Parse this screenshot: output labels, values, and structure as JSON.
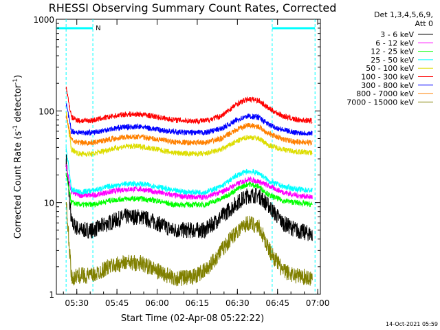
{
  "chart_data": {
    "type": "line",
    "title": "RHESSI Observing Summary Count Rates, Corrected",
    "xlabel": "Start Time (02-Apr-08 05:22:22)",
    "ylabel": "Corrected Count Rate (s",
    "ylabel_sup1": "-1",
    "ylabel_mid": " detector",
    "ylabel_sup2": "-1",
    "ylabel_end": ")",
    "footer": "14-Oct-2021 05:59",
    "y_scale": "log",
    "ylim": [
      1,
      1000
    ],
    "xlim": [
      "05:22:22",
      "07:01:00"
    ],
    "x_ticks": [
      "05:30",
      "05:45",
      "06:00",
      "06:15",
      "06:30",
      "06:45",
      "07:00"
    ],
    "y_ticks": [
      "1",
      "10",
      "100",
      "1000"
    ],
    "legend_header": [
      "Det 1,3,4,5,6,9,",
      "Att 0"
    ],
    "legend_position": "right",
    "night_marker_label": "N",
    "night_intervals": [
      [
        "05:26",
        "05:36"
      ],
      [
        "06:43",
        "06:59"
      ]
    ],
    "saa_lines": [
      "05:26",
      "05:36",
      "06:43",
      "06:59"
    ],
    "series": [
      {
        "name": "3 - 6 keV",
        "color": "#000000",
        "x": [
          "05:26",
          "05:28",
          "05:31",
          "05:36",
          "05:42",
          "05:48",
          "05:54",
          "06:00",
          "06:06",
          "06:12",
          "06:18",
          "06:24",
          "06:30",
          "06:34",
          "06:38",
          "06:42",
          "06:47",
          "06:52",
          "06:58"
        ],
        "y": [
          30,
          6,
          5,
          5,
          6,
          7,
          7,
          6,
          5,
          5,
          5,
          7,
          10,
          12,
          12,
          9,
          6,
          5,
          4.5
        ]
      },
      {
        "name": "6 - 12 keV",
        "color": "#ff00ff",
        "x": [
          "05:26",
          "05:28",
          "05:31",
          "05:36",
          "05:42",
          "05:48",
          "05:54",
          "06:00",
          "06:06",
          "06:12",
          "06:18",
          "06:24",
          "06:30",
          "06:34",
          "06:38",
          "06:42",
          "06:47",
          "06:52",
          "06:58"
        ],
        "y": [
          25,
          13,
          12,
          12,
          13,
          14,
          14,
          13,
          12,
          11.5,
          11.5,
          13,
          16,
          18,
          17,
          15,
          13,
          12,
          11.5
        ]
      },
      {
        "name": "12 - 25 keV",
        "color": "#00ff00",
        "x": [
          "05:26",
          "05:28",
          "05:31",
          "05:36",
          "05:42",
          "05:48",
          "05:54",
          "06:00",
          "06:06",
          "06:12",
          "06:18",
          "06:24",
          "06:30",
          "06:34",
          "06:38",
          "06:42",
          "06:47",
          "06:52",
          "06:58"
        ],
        "y": [
          20,
          10,
          9.5,
          9.5,
          10.5,
          11,
          11,
          10.5,
          9.5,
          9.5,
          9.5,
          11,
          14,
          16,
          15,
          12,
          10.5,
          10,
          9.5
        ]
      },
      {
        "name": "25 - 50 keV",
        "color": "#00ffff",
        "x": [
          "05:26",
          "05:28",
          "05:31",
          "05:36",
          "05:42",
          "05:48",
          "05:54",
          "06:00",
          "06:06",
          "06:12",
          "06:18",
          "06:24",
          "06:30",
          "06:34",
          "06:38",
          "06:42",
          "06:47",
          "06:52",
          "06:58"
        ],
        "y": [
          40,
          14,
          13,
          13.5,
          15,
          16,
          16,
          15,
          13.5,
          13,
          13,
          15,
          20,
          22,
          21,
          17,
          15,
          14,
          13.5
        ]
      },
      {
        "name": "50 - 100 keV",
        "color": "#dddd00",
        "x": [
          "05:26",
          "05:28",
          "05:31",
          "05:36",
          "05:42",
          "05:48",
          "05:54",
          "06:00",
          "06:06",
          "06:12",
          "06:18",
          "06:24",
          "06:30",
          "06:34",
          "06:38",
          "06:42",
          "06:47",
          "06:52",
          "06:58"
        ],
        "y": [
          100,
          38,
          34,
          34,
          38,
          41,
          41,
          38,
          35,
          34,
          34,
          38,
          47,
          52,
          50,
          42,
          38,
          36,
          35
        ]
      },
      {
        "name": "100 - 300 keV",
        "color": "#ff0000",
        "x": [
          "05:26",
          "05:28",
          "05:31",
          "05:36",
          "05:42",
          "05:48",
          "05:54",
          "06:00",
          "06:06",
          "06:12",
          "06:18",
          "06:24",
          "06:30",
          "06:34",
          "06:38",
          "06:42",
          "06:47",
          "06:52",
          "06:58"
        ],
        "y": [
          180,
          85,
          78,
          79,
          86,
          92,
          92,
          86,
          80,
          78,
          78,
          88,
          120,
          135,
          130,
          105,
          88,
          80,
          78
        ]
      },
      {
        "name": "300 - 800 keV",
        "color": "#0000ff",
        "x": [
          "05:26",
          "05:28",
          "05:31",
          "05:36",
          "05:42",
          "05:48",
          "05:54",
          "06:00",
          "06:06",
          "06:12",
          "06:18",
          "06:24",
          "06:30",
          "06:34",
          "06:38",
          "06:42",
          "06:47",
          "06:52",
          "06:58"
        ],
        "y": [
          120,
          60,
          58,
          58,
          63,
          67,
          67,
          63,
          59,
          58,
          58,
          64,
          80,
          88,
          85,
          70,
          62,
          58,
          57
        ]
      },
      {
        "name": "800 - 7000 keV",
        "color": "#ff8000",
        "x": [
          "05:26",
          "05:28",
          "05:31",
          "05:36",
          "05:42",
          "05:48",
          "05:54",
          "06:00",
          "06:06",
          "06:12",
          "06:18",
          "06:24",
          "06:30",
          "06:34",
          "06:38",
          "06:42",
          "06:47",
          "06:52",
          "06:58"
        ],
        "y": [
          90,
          48,
          45,
          45,
          49,
          52,
          52,
          49,
          46,
          45,
          45,
          50,
          63,
          70,
          67,
          56,
          49,
          46,
          45
        ]
      },
      {
        "name": "7000 - 15000 keV",
        "color": "#808000",
        "x": [
          "05:26",
          "05:28",
          "05:31",
          "05:36",
          "05:42",
          "05:48",
          "05:54",
          "06:00",
          "06:06",
          "06:12",
          "06:18",
          "06:24",
          "06:30",
          "06:34",
          "06:38",
          "06:42",
          "06:47",
          "06:52",
          "06:58"
        ],
        "y": [
          10,
          1.5,
          1.6,
          1.6,
          2,
          2.2,
          2.2,
          1.8,
          1.5,
          1.5,
          1.8,
          3,
          5,
          6,
          5.5,
          3,
          1.8,
          1.6,
          1.5
        ]
      }
    ]
  }
}
